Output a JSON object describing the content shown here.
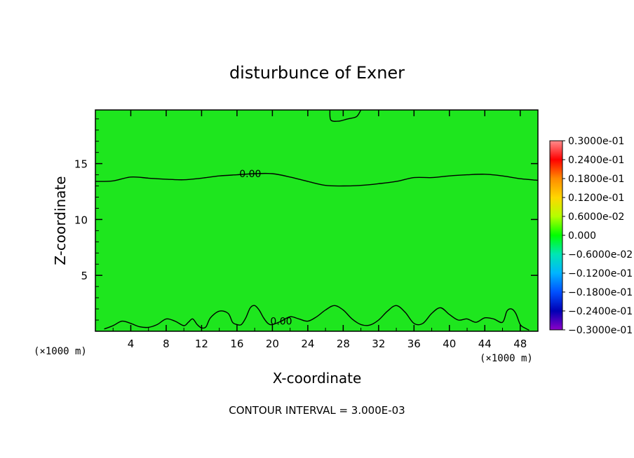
{
  "chart_data": {
    "type": "contour",
    "title": "disturbunce of Exner",
    "xlabel": "X-coordinate",
    "ylabel": "Z-coordinate",
    "x_unit_left": "(×1000 m)",
    "x_unit_right": "(×1000 m)",
    "xlim": [
      0,
      50
    ],
    "ylim": [
      0,
      19.8
    ],
    "x_ticks": [
      4,
      8,
      12,
      16,
      20,
      24,
      28,
      32,
      36,
      40,
      44,
      48
    ],
    "x_tick_labels": [
      "4",
      "8",
      "12",
      "16",
      "20",
      "24",
      "28",
      "32",
      "36",
      "40",
      "44",
      "48"
    ],
    "y_ticks": [
      5,
      10,
      15
    ],
    "y_tick_labels": [
      "5",
      "10",
      "15"
    ],
    "fill_color": "#1ee61e",
    "colorbar": {
      "labels": [
        "0.3000e-01",
        "0.2400e-01",
        "0.1800e-01",
        "0.1200e-01",
        "0.6000e-02",
        "0.000",
        "−0.6000e-02",
        "−0.1200e-01",
        "−0.1800e-01",
        "−0.2400e-01",
        "−0.3000e-01"
      ],
      "values": [
        0.03,
        0.024,
        0.018,
        0.012,
        0.006,
        0.0,
        -0.006,
        -0.012,
        -0.018,
        -0.024,
        -0.03
      ],
      "colors": [
        "#ff8c8c",
        "#ff0000",
        "#ff8c00",
        "#ffd700",
        "#b4ff00",
        "#00ff00",
        "#00e6b4",
        "#00b4ff",
        "#0050ff",
        "#0000b4",
        "#8c00c8"
      ]
    },
    "contours": [
      {
        "level_label": "0.00",
        "level": 0.0,
        "points": [
          [
            0,
            13.4
          ],
          [
            2,
            13.45
          ],
          [
            4,
            13.8
          ],
          [
            6,
            13.7
          ],
          [
            8,
            13.6
          ],
          [
            10,
            13.55
          ],
          [
            12,
            13.7
          ],
          [
            14,
            13.9
          ],
          [
            16,
            14.0
          ],
          [
            18,
            14.1
          ],
          [
            20,
            14.1
          ],
          [
            22,
            13.8
          ],
          [
            24,
            13.4
          ],
          [
            26,
            13.05
          ],
          [
            28,
            13.0
          ],
          [
            30,
            13.05
          ],
          [
            32,
            13.2
          ],
          [
            34,
            13.4
          ],
          [
            36,
            13.75
          ],
          [
            38,
            13.75
          ],
          [
            40,
            13.9
          ],
          [
            42,
            14.0
          ],
          [
            44,
            14.05
          ],
          [
            46,
            13.9
          ],
          [
            48,
            13.65
          ],
          [
            50,
            13.5
          ]
        ]
      },
      {
        "level_label": "0.00",
        "level": 0.0,
        "points": [
          [
            1,
            0.2
          ],
          [
            2,
            0.5
          ],
          [
            3,
            0.9
          ],
          [
            4,
            0.7
          ],
          [
            5,
            0.4
          ],
          [
            6,
            0.35
          ],
          [
            7,
            0.6
          ],
          [
            8,
            1.1
          ],
          [
            9,
            0.9
          ],
          [
            10,
            0.5
          ],
          [
            10.5,
            0.8
          ],
          [
            11,
            1.1
          ],
          [
            11.5,
            0.6
          ],
          [
            12,
            0.3
          ],
          [
            12.5,
            0.4
          ],
          [
            13,
            1.2
          ],
          [
            14,
            1.8
          ],
          [
            15,
            1.6
          ],
          [
            15.5,
            0.8
          ],
          [
            16,
            0.6
          ],
          [
            16.5,
            0.6
          ],
          [
            17,
            1.2
          ],
          [
            17.5,
            2.1
          ],
          [
            18,
            2.3
          ],
          [
            18.5,
            1.9
          ],
          [
            19,
            1.2
          ],
          [
            19.5,
            0.7
          ],
          [
            20,
            0.6
          ],
          [
            21,
            0.9
          ],
          [
            22,
            1.3
          ],
          [
            23,
            1.1
          ],
          [
            24,
            0.9
          ],
          [
            25,
            1.3
          ],
          [
            26,
            1.9
          ],
          [
            27,
            2.3
          ],
          [
            28,
            1.9
          ],
          [
            29,
            1.1
          ],
          [
            30,
            0.6
          ],
          [
            31,
            0.55
          ],
          [
            32,
            1.0
          ],
          [
            33,
            1.8
          ],
          [
            34,
            2.3
          ],
          [
            35,
            1.7
          ],
          [
            36,
            0.7
          ],
          [
            37,
            0.7
          ],
          [
            38,
            1.6
          ],
          [
            39,
            2.1
          ],
          [
            40,
            1.5
          ],
          [
            41,
            1.0
          ],
          [
            42,
            1.1
          ],
          [
            43,
            0.8
          ],
          [
            44,
            1.2
          ],
          [
            45,
            1.1
          ],
          [
            46,
            0.8
          ],
          [
            46.5,
            1.8
          ],
          [
            47,
            2.0
          ],
          [
            47.5,
            1.6
          ],
          [
            48,
            0.6
          ],
          [
            48.5,
            0.3
          ],
          [
            49,
            0.1
          ]
        ]
      },
      {
        "level_label": "",
        "level": 0.0,
        "points": [
          [
            26.5,
            19.8
          ],
          [
            26.6,
            18.9
          ],
          [
            27.5,
            18.8
          ],
          [
            28.5,
            19.0
          ],
          [
            29.5,
            19.2
          ],
          [
            30,
            19.8
          ]
        ]
      }
    ],
    "contour_labels": [
      {
        "text": "0.00",
        "x": 17.5,
        "y": 14.1
      },
      {
        "text": "0.00",
        "x": 21,
        "y": 0.9
      }
    ],
    "note": "CONTOUR INTERVAL = 3.000E-03"
  }
}
